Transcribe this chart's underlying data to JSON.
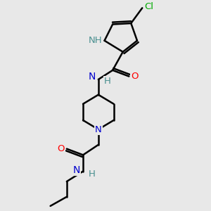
{
  "bg_color": "#e8e8e8",
  "bond_color": "#000000",
  "bond_width": 1.8,
  "atom_colors": {
    "N": "#0000cd",
    "O": "#ff0000",
    "Cl": "#00aa00",
    "NH_pyrrole": "#4a9090"
  },
  "font_size": 9.5
}
